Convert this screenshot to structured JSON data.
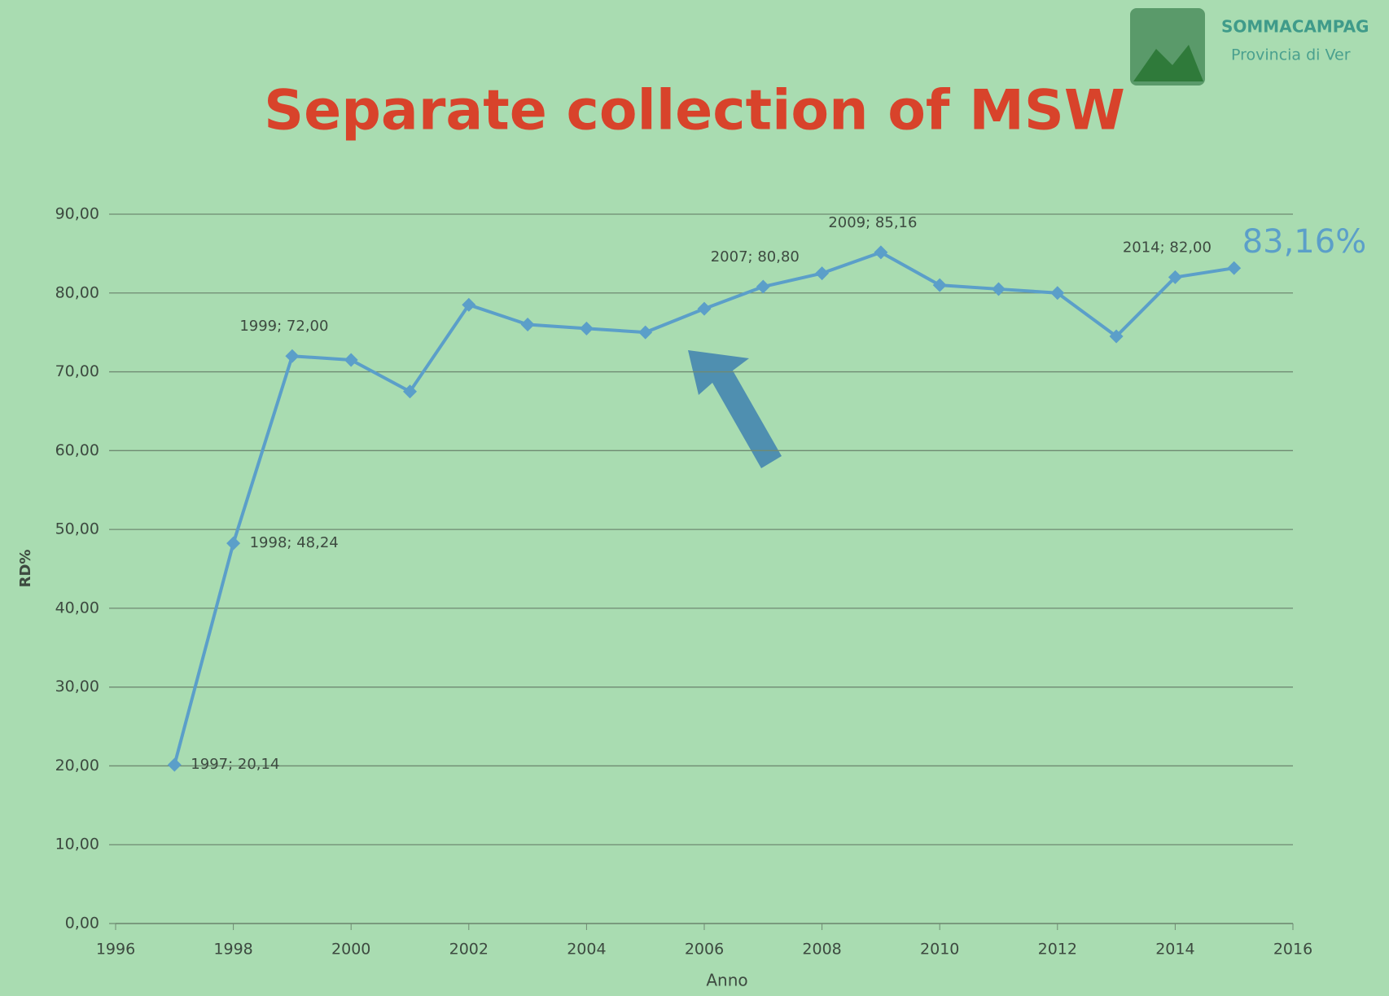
{
  "header": {
    "logo_name": "SOMMACAMPAG",
    "logo_subtitle": "Provincia di Ver"
  },
  "chart_data": {
    "type": "line",
    "title": "Separate collection of MSW",
    "x_label": "Anno",
    "y_label": "RD%",
    "x": [
      1997,
      1998,
      1999,
      2000,
      2001,
      2002,
      2003,
      2004,
      2005,
      2006,
      2007,
      2008,
      2009,
      2010,
      2011,
      2012,
      2013,
      2014,
      2015
    ],
    "series": [
      {
        "name": "RD%",
        "color": "#5b9fc9",
        "values": [
          20.14,
          48.24,
          72,
          71.5,
          67.5,
          78.5,
          76,
          75.5,
          75,
          78,
          80.8,
          82.5,
          85.16,
          81,
          80.5,
          80,
          74.5,
          82,
          83.16
        ],
        "value_labels": [
          "1997; 20,14",
          "1998; 48,24",
          "1999; 72,00",
          null,
          null,
          null,
          null,
          null,
          null,
          null,
          "2007; 80,80",
          null,
          "2009; 85,16",
          null,
          null,
          null,
          null,
          "2014; 82,00",
          null
        ]
      }
    ],
    "annotation": "83,16%",
    "xlim": [
      1996,
      2016
    ],
    "xticks": [
      1996,
      1998,
      2000,
      2002,
      2004,
      2006,
      2008,
      2010,
      2012,
      2014,
      2016
    ],
    "ylim": [
      0,
      90
    ],
    "yticks": [
      {
        "value": 0,
        "label": "0,00"
      },
      {
        "value": 10,
        "label": "10,00"
      },
      {
        "value": 20,
        "label": "20,00"
      },
      {
        "value": 30,
        "label": "30,00"
      },
      {
        "value": 40,
        "label": "40,00"
      },
      {
        "value": 50,
        "label": "50,00"
      },
      {
        "value": 60,
        "label": "60,00"
      },
      {
        "value": 70,
        "label": "70,00"
      },
      {
        "value": 80,
        "label": "80,00"
      },
      {
        "value": 90,
        "label": "90,00"
      }
    ],
    "grid": true
  }
}
